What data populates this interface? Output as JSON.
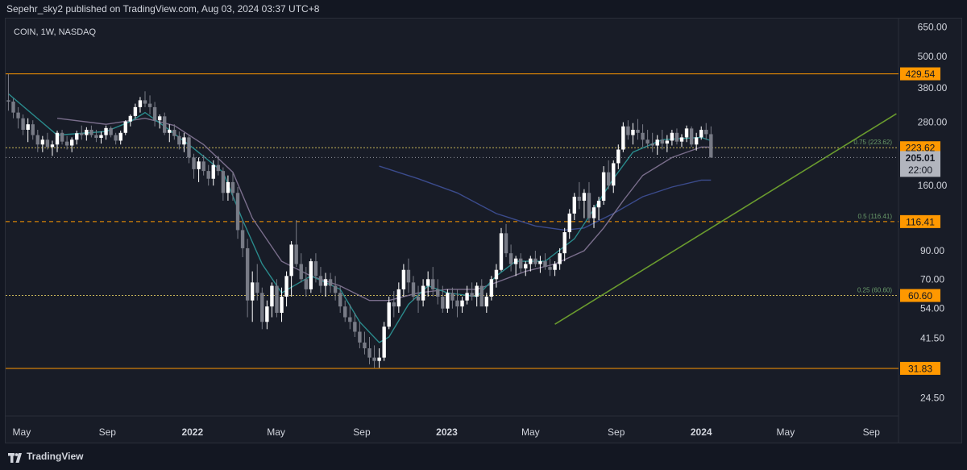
{
  "header": {
    "publisher_text": "Sepehr_sky2 published on TradingView.com, Aug 03, 2024 03:37 UTC+8"
  },
  "footer": {
    "brand": "TradingView"
  },
  "colors": {
    "background": "#181c27",
    "frame": "#131722",
    "text": "#d1d4dc",
    "candle_up": "#ffffff",
    "candle_down": "#787b86",
    "fib_line": "#c5b358",
    "orange_line": "#ff9800",
    "label_orange": "#ff9800",
    "trendline": "#6a9b2e",
    "ma_fast": "#2a8a8c",
    "ma_mid": "#7a6e8c",
    "ma_slow": "#3b4b8c",
    "price_label": "#b2b5be"
  },
  "chart_data": {
    "type": "candlestick",
    "symbol_label": "COIN, 1W, NASDAQ",
    "y_scale": "log",
    "ylim": [
      20.9,
      700
    ],
    "y_ticks": [
      650,
      500,
      380,
      280,
      160,
      90,
      70,
      54,
      41.5,
      24.5
    ],
    "y_tick_labels": [
      "650.00",
      "500.00",
      "380.00",
      "280.00",
      "160.00",
      "90.00",
      "70.00",
      "54.00",
      "41.50",
      "24.50"
    ],
    "x_ticks": [
      {
        "label": "May",
        "date": "2021-05-01",
        "bold": false
      },
      {
        "label": "Sep",
        "date": "2021-09-01",
        "bold": false
      },
      {
        "label": "2022",
        "date": "2022-01-01",
        "bold": true
      },
      {
        "label": "May",
        "date": "2022-05-01",
        "bold": false
      },
      {
        "label": "Sep",
        "date": "2022-09-01",
        "bold": false
      },
      {
        "label": "2023",
        "date": "2023-01-01",
        "bold": true
      },
      {
        "label": "May",
        "date": "2023-05-01",
        "bold": false
      },
      {
        "label": "Sep",
        "date": "2023-09-01",
        "bold": false
      },
      {
        "label": "2024",
        "date": "2024-01-01",
        "bold": true
      },
      {
        "label": "May",
        "date": "2024-05-01",
        "bold": false
      },
      {
        "label": "Sep",
        "date": "2024-09-01",
        "bold": false
      }
    ],
    "xlim": [
      "2021-04-08",
      "2024-10-10"
    ],
    "horizontal_levels": [
      {
        "price": 429.54,
        "label": "429.54",
        "style": "solid",
        "color": "#ff9800"
      },
      {
        "price": 223.62,
        "label": "223.62",
        "style": "dotted",
        "color": "#c5b358",
        "annotation": "0.75 (223.62)"
      },
      {
        "price": 116.41,
        "label": "116.41",
        "style": "dashed",
        "color": "#ff9800",
        "annotation": "0.5 (116.41)"
      },
      {
        "price": 60.6,
        "label": "60.60",
        "style": "dotted",
        "color": "#c5b358",
        "annotation": "0.25 (60.60)"
      },
      {
        "price": 31.83,
        "label": "31.83",
        "style": "solid",
        "color": "#ff9800"
      }
    ],
    "last_price": {
      "price": 205.01,
      "label": "205.01",
      "countdown": "22:00"
    },
    "trendline": {
      "from": {
        "date": "2023-06-05",
        "price": 47
      },
      "to": {
        "date": "2024-10-07",
        "price": 302
      }
    },
    "candles_weekly_from": "2021-04-12",
    "candles": [
      [
        340,
        429,
        310,
        336
      ],
      [
        336,
        345,
        290,
        305
      ],
      [
        305,
        320,
        265,
        290
      ],
      [
        290,
        300,
        250,
        262
      ],
      [
        262,
        290,
        235,
        275
      ],
      [
        275,
        285,
        240,
        250
      ],
      [
        250,
        262,
        215,
        230
      ],
      [
        230,
        248,
        215,
        240
      ],
      [
        240,
        255,
        220,
        225
      ],
      [
        225,
        238,
        208,
        230
      ],
      [
        230,
        260,
        215,
        255
      ],
      [
        255,
        262,
        230,
        236
      ],
      [
        236,
        248,
        220,
        228
      ],
      [
        228,
        245,
        215,
        240
      ],
      [
        240,
        260,
        230,
        254
      ],
      [
        254,
        272,
        240,
        250
      ],
      [
        250,
        268,
        238,
        262
      ],
      [
        262,
        272,
        245,
        250
      ],
      [
        250,
        262,
        235,
        244
      ],
      [
        244,
        258,
        232,
        250
      ],
      [
        250,
        272,
        240,
        266
      ],
      [
        266,
        270,
        245,
        250
      ],
      [
        250,
        255,
        230,
        238
      ],
      [
        238,
        260,
        230,
        255
      ],
      [
        255,
        285,
        250,
        282
      ],
      [
        282,
        300,
        270,
        296
      ],
      [
        296,
        330,
        290,
        320
      ],
      [
        320,
        350,
        305,
        340
      ],
      [
        340,
        368,
        320,
        330
      ],
      [
        330,
        355,
        300,
        320
      ],
      [
        320,
        335,
        270,
        285
      ],
      [
        285,
        300,
        265,
        295
      ],
      [
        295,
        305,
        250,
        255
      ],
      [
        255,
        275,
        235,
        262
      ],
      [
        262,
        275,
        240,
        248
      ],
      [
        248,
        258,
        220,
        230
      ],
      [
        230,
        255,
        215,
        245
      ],
      [
        245,
        250,
        195,
        205
      ],
      [
        205,
        212,
        170,
        185
      ],
      [
        185,
        205,
        165,
        198
      ],
      [
        198,
        210,
        175,
        182
      ],
      [
        182,
        192,
        160,
        170
      ],
      [
        170,
        200,
        160,
        192
      ],
      [
        192,
        208,
        175,
        182
      ],
      [
        182,
        188,
        140,
        150
      ],
      [
        150,
        175,
        140,
        165
      ],
      [
        165,
        180,
        140,
        150
      ],
      [
        150,
        158,
        100,
        108
      ],
      [
        108,
        118,
        85,
        92
      ],
      [
        92,
        100,
        50,
        58
      ],
      [
        58,
        75,
        48,
        68
      ],
      [
        68,
        80,
        58,
        62
      ],
      [
        62,
        65,
        45,
        48
      ],
      [
        48,
        58,
        45,
        55
      ],
      [
        55,
        68,
        50,
        66
      ],
      [
        66,
        70,
        50,
        52
      ],
      [
        52,
        65,
        48,
        60
      ],
      [
        60,
        75,
        55,
        72
      ],
      [
        72,
        98,
        60,
        95
      ],
      [
        95,
        118,
        78,
        80
      ],
      [
        80,
        88,
        68,
        70
      ],
      [
        70,
        78,
        60,
        64
      ],
      [
        64,
        84,
        62,
        82
      ],
      [
        82,
        88,
        68,
        72
      ],
      [
        72,
        78,
        62,
        66
      ],
      [
        66,
        74,
        60,
        70
      ],
      [
        70,
        74,
        62,
        66
      ],
      [
        66,
        72,
        58,
        62
      ],
      [
        62,
        66,
        52,
        55
      ],
      [
        55,
        58,
        48,
        50
      ],
      [
        50,
        56,
        45,
        48
      ],
      [
        48,
        52,
        42,
        44
      ],
      [
        44,
        48,
        38,
        40
      ],
      [
        40,
        44,
        36,
        38
      ],
      [
        38,
        42,
        33,
        35
      ],
      [
        35,
        39,
        32,
        34
      ],
      [
        34,
        38,
        32,
        35
      ],
      [
        35,
        48,
        34,
        46
      ],
      [
        46,
        60,
        45,
        57
      ],
      [
        57,
        63,
        50,
        55
      ],
      [
        55,
        68,
        52,
        64
      ],
      [
        64,
        80,
        60,
        76
      ],
      [
        76,
        84,
        62,
        68
      ],
      [
        68,
        72,
        58,
        60
      ],
      [
        60,
        66,
        52,
        58
      ],
      [
        58,
        70,
        55,
        66
      ],
      [
        66,
        75,
        60,
        70
      ],
      [
        70,
        78,
        60,
        64
      ],
      [
        64,
        70,
        56,
        60
      ],
      [
        60,
        66,
        52,
        54
      ],
      [
        54,
        64,
        52,
        62
      ],
      [
        62,
        65,
        54,
        58
      ],
      [
        58,
        64,
        50,
        55
      ],
      [
        55,
        60,
        52,
        58
      ],
      [
        58,
        66,
        56,
        62
      ],
      [
        62,
        68,
        58,
        60
      ],
      [
        60,
        68,
        55,
        66
      ],
      [
        66,
        70,
        58,
        55
      ],
      [
        55,
        62,
        52,
        60
      ],
      [
        60,
        72,
        58,
        70
      ],
      [
        70,
        80,
        65,
        76
      ],
      [
        76,
        110,
        75,
        105
      ],
      [
        105,
        114,
        85,
        88
      ],
      [
        88,
        95,
        75,
        80
      ],
      [
        80,
        86,
        72,
        84
      ],
      [
        84,
        88,
        74,
        77
      ],
      [
        77,
        82,
        72,
        80
      ],
      [
        80,
        86,
        75,
        84
      ],
      [
        84,
        90,
        78,
        80
      ],
      [
        80,
        86,
        74,
        82
      ],
      [
        82,
        88,
        76,
        78
      ],
      [
        78,
        84,
        72,
        76
      ],
      [
        76,
        82,
        72,
        80
      ],
      [
        80,
        92,
        76,
        88
      ],
      [
        88,
        110,
        82,
        106
      ],
      [
        106,
        130,
        100,
        125
      ],
      [
        125,
        150,
        118,
        145
      ],
      [
        145,
        165,
        130,
        140
      ],
      [
        140,
        155,
        120,
        150
      ],
      [
        150,
        165,
        115,
        120
      ],
      [
        120,
        135,
        110,
        132
      ],
      [
        132,
        145,
        118,
        140
      ],
      [
        140,
        190,
        135,
        180
      ],
      [
        180,
        200,
        155,
        160
      ],
      [
        160,
        200,
        150,
        195
      ],
      [
        195,
        230,
        185,
        220
      ],
      [
        220,
        280,
        215,
        270
      ],
      [
        270,
        285,
        240,
        250
      ],
      [
        250,
        278,
        230,
        262
      ],
      [
        262,
        288,
        240,
        255
      ],
      [
        255,
        275,
        225,
        240
      ],
      [
        240,
        262,
        225,
        232
      ],
      [
        232,
        255,
        215,
        228
      ],
      [
        228,
        250,
        210,
        240
      ],
      [
        240,
        262,
        220,
        232
      ],
      [
        232,
        250,
        215,
        238
      ],
      [
        238,
        262,
        228,
        255
      ],
      [
        255,
        265,
        230,
        236
      ],
      [
        236,
        252,
        225,
        245
      ],
      [
        245,
        272,
        235,
        265
      ],
      [
        265,
        270,
        225,
        230
      ],
      [
        230,
        255,
        218,
        245
      ],
      [
        245,
        270,
        240,
        262
      ],
      [
        262,
        278,
        240,
        252
      ],
      [
        252,
        270,
        205,
        205
      ]
    ],
    "ma_fast": [
      [
        0,
        360
      ],
      [
        10,
        250
      ],
      [
        20,
        258
      ],
      [
        25,
        282
      ],
      [
        28,
        305
      ],
      [
        32,
        270
      ],
      [
        38,
        222
      ],
      [
        44,
        180
      ],
      [
        48,
        118
      ],
      [
        52,
        80
      ],
      [
        56,
        62
      ],
      [
        62,
        72
      ],
      [
        68,
        64
      ],
      [
        72,
        48
      ],
      [
        76,
        40
      ],
      [
        78,
        42
      ],
      [
        82,
        56
      ],
      [
        86,
        66
      ],
      [
        90,
        62
      ],
      [
        96,
        60
      ],
      [
        100,
        72
      ],
      [
        104,
        82
      ],
      [
        110,
        82
      ],
      [
        116,
        100
      ],
      [
        120,
        130
      ],
      [
        124,
        170
      ],
      [
        128,
        215
      ],
      [
        134,
        240
      ],
      [
        142,
        245
      ],
      [
        144,
        238
      ]
    ],
    "ma_mid": [
      [
        10,
        290
      ],
      [
        20,
        275
      ],
      [
        28,
        290
      ],
      [
        34,
        272
      ],
      [
        40,
        230
      ],
      [
        46,
        180
      ],
      [
        50,
        120
      ],
      [
        56,
        82
      ],
      [
        62,
        72
      ],
      [
        68,
        66
      ],
      [
        74,
        58
      ],
      [
        78,
        58
      ],
      [
        84,
        62
      ],
      [
        90,
        64
      ],
      [
        96,
        64
      ],
      [
        100,
        68
      ],
      [
        106,
        75
      ],
      [
        112,
        80
      ],
      [
        118,
        90
      ],
      [
        122,
        110
      ],
      [
        126,
        140
      ],
      [
        130,
        175
      ],
      [
        136,
        205
      ],
      [
        142,
        225
      ],
      [
        144,
        225
      ]
    ],
    "ma_slow": [
      [
        76,
        190
      ],
      [
        84,
        170
      ],
      [
        92,
        150
      ],
      [
        100,
        125
      ],
      [
        108,
        112
      ],
      [
        114,
        108
      ],
      [
        118,
        110
      ],
      [
        124,
        125
      ],
      [
        130,
        145
      ],
      [
        136,
        158
      ],
      [
        142,
        168
      ],
      [
        144,
        168
      ]
    ]
  }
}
